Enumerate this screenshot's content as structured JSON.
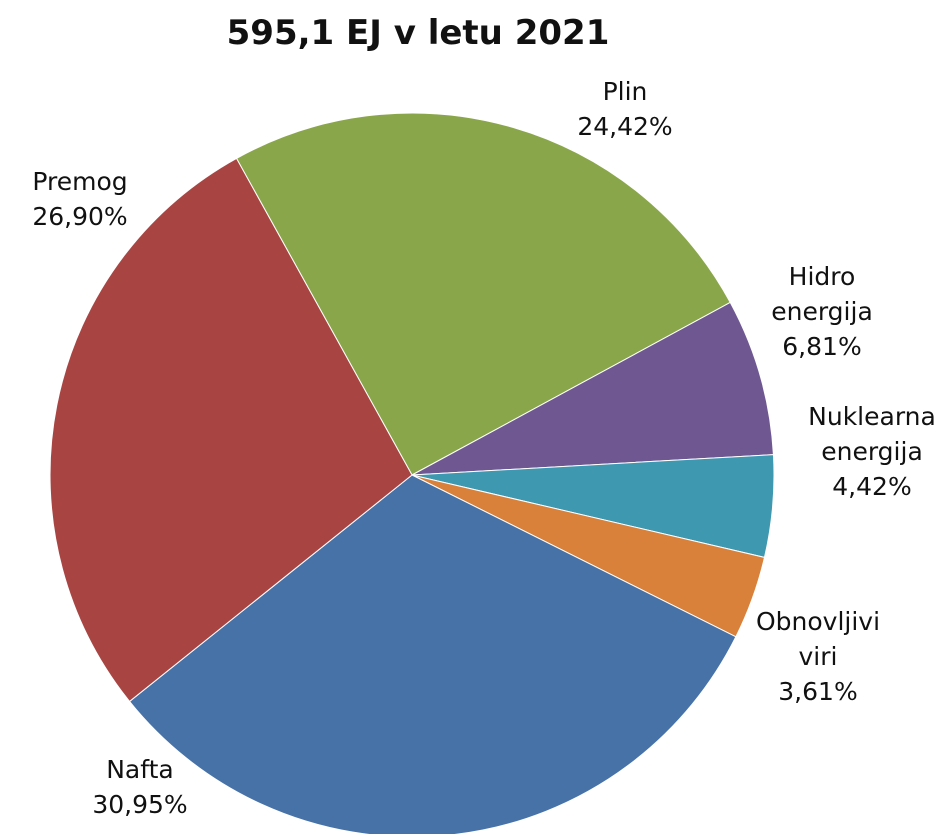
{
  "chart_data": {
    "type": "pie",
    "title": "595,1 EJ v letu 2021",
    "categories": [
      "Plin",
      "Hidro energija",
      "Nuklearna energija",
      "Obnovljivi viri",
      "Nafta",
      "Premog"
    ],
    "values": [
      24.42,
      6.81,
      4.42,
      3.61,
      30.95,
      26.9
    ],
    "value_labels": [
      "24,42%",
      "6,81%",
      "4,42%",
      "3,61%",
      "30,95%",
      "26,90%"
    ],
    "colors": [
      "#8aa64a",
      "#6f5892",
      "#3d98b0",
      "#d9813a",
      "#4672a8",
      "#a84543"
    ]
  }
}
